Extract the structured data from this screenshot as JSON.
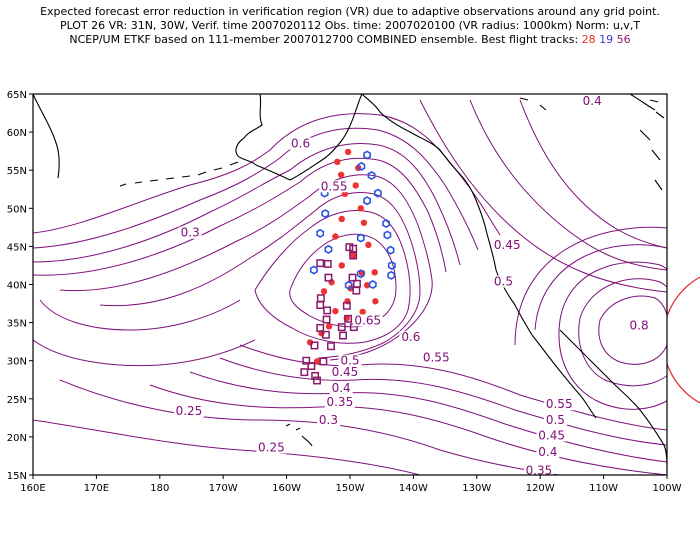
{
  "title": {
    "line1": "Expected forecast error reduction in verification region (VR) due to adaptive observations around any grid point.",
    "line2": "PLOT 26 VR: 31N, 30W, Verif. time 2007020112 Obs. time: 2007020100 (VR radius: 1000km) Norm: u,v,T",
    "line3": "NCEP/UM ETKF based on 111-member 2007012700 COMBINED ensemble.  Best flight tracks:",
    "track_red": "28",
    "track_blue": "19",
    "track_purple": "56"
  },
  "axes": {
    "x_ticks": [
      "160E",
      "170E",
      "180",
      "170W",
      "160W",
      "150W",
      "140W",
      "130W",
      "120W",
      "110W",
      "100W"
    ],
    "y_ticks": [
      "65N",
      "60N",
      "55N",
      "50N",
      "45N",
      "40N",
      "35N",
      "30N",
      "25N",
      "20N",
      "15N"
    ]
  },
  "colors": {
    "contour": "#80107a",
    "coast": "#000000",
    "red_track": "#ee3333",
    "blue_track": "#2a55e0",
    "purple_track": "#8a1a6a",
    "vr_circle": "#e03030"
  },
  "contour_labels": [
    {
      "text": "0.6",
      "lon": -157.8,
      "lat": 58.1
    },
    {
      "text": "0.55",
      "lon": -152.5,
      "lat": 52.5
    },
    {
      "text": "0.3",
      "lon": -175.2,
      "lat": 46.4
    },
    {
      "text": "0.4",
      "lon": -111.8,
      "lat": 63.7
    },
    {
      "text": "0.45",
      "lon": -125.2,
      "lat": 44.8
    },
    {
      "text": "0.5",
      "lon": -125.8,
      "lat": 40.0
    },
    {
      "text": "0.65",
      "lon": -147.2,
      "lat": 34.9
    },
    {
      "text": "0.6",
      "lon": -140.4,
      "lat": 32.7
    },
    {
      "text": "0.55",
      "lon": -136.4,
      "lat": 30.0
    },
    {
      "text": "0.5",
      "lon": -150.0,
      "lat": 29.6
    },
    {
      "text": "0.45",
      "lon": -150.8,
      "lat": 28.1
    },
    {
      "text": "0.4",
      "lon": -151.4,
      "lat": 26.0
    },
    {
      "text": "0.35",
      "lon": -151.6,
      "lat": 24.2
    },
    {
      "text": "0.3",
      "lon": -153.4,
      "lat": 21.8
    },
    {
      "text": "0.25",
      "lon": -175.4,
      "lat": 23.0
    },
    {
      "text": "0.25",
      "lon": -162.4,
      "lat": 18.2
    },
    {
      "text": "0.8",
      "lon": -104.4,
      "lat": 34.2
    },
    {
      "text": "0.55",
      "lon": -117.0,
      "lat": 23.9
    },
    {
      "text": "0.5",
      "lon": -117.6,
      "lat": 21.8
    },
    {
      "text": "0.45",
      "lon": -118.2,
      "lat": 19.8
    },
    {
      "text": "0.4",
      "lon": -118.8,
      "lat": 17.6
    },
    {
      "text": "0.35",
      "lon": -120.2,
      "lat": 15.2
    }
  ],
  "tracks": {
    "red": [
      [
        -150.3,
        57.4
      ],
      [
        -152.0,
        56.1
      ],
      [
        -148.7,
        55.3
      ],
      [
        -151.4,
        54.4
      ],
      [
        -149.1,
        53.0
      ],
      [
        -150.8,
        51.9
      ],
      [
        -148.3,
        50.0
      ],
      [
        -151.3,
        48.6
      ],
      [
        -147.8,
        48.1
      ],
      [
        -152.3,
        46.3
      ],
      [
        -147.1,
        45.2
      ],
      [
        -149.5,
        43.8
      ],
      [
        -151.3,
        42.5
      ],
      [
        -146.1,
        41.6
      ],
      [
        -148.1,
        41.5
      ],
      [
        -152.9,
        40.3
      ],
      [
        -149.9,
        39.5
      ],
      [
        -147.3,
        39.9
      ],
      [
        -154.1,
        39.1
      ],
      [
        -150.4,
        37.8
      ],
      [
        -146.0,
        37.8
      ],
      [
        -152.3,
        36.5
      ],
      [
        -148.0,
        36.4
      ],
      [
        -150.5,
        35.6
      ],
      [
        -153.3,
        34.5
      ],
      [
        -154.5,
        33.6
      ],
      [
        -156.3,
        32.4
      ],
      [
        -155.2,
        29.9
      ]
    ],
    "blue": [
      [
        -147.3,
        57.0
      ],
      [
        -148.2,
        55.5
      ],
      [
        -146.6,
        54.3
      ],
      [
        -145.6,
        52.0
      ],
      [
        -154.0,
        52.0
      ],
      [
        -147.3,
        51.0
      ],
      [
        -153.9,
        49.3
      ],
      [
        -144.3,
        48.0
      ],
      [
        -154.7,
        46.7
      ],
      [
        -144.1,
        46.5
      ],
      [
        -148.3,
        46.1
      ],
      [
        -153.4,
        44.6
      ],
      [
        -143.6,
        44.5
      ],
      [
        -143.4,
        42.5
      ],
      [
        -155.7,
        41.9
      ],
      [
        -148.3,
        41.4
      ],
      [
        -143.5,
        41.2
      ],
      [
        -150.2,
        39.9
      ],
      [
        -146.4,
        40.0
      ]
    ],
    "purple": [
      [
        -150.1,
        44.9
      ],
      [
        -149.5,
        44.7
      ],
      [
        -149.5,
        43.8
      ],
      [
        -154.7,
        42.8
      ],
      [
        -153.5,
        42.7
      ],
      [
        -153.4,
        40.9
      ],
      [
        -149.6,
        40.9
      ],
      [
        -148.9,
        40.1
      ],
      [
        -149.0,
        39.2
      ],
      [
        -154.6,
        38.2
      ],
      [
        -154.7,
        37.3
      ],
      [
        -150.5,
        37.2
      ],
      [
        -153.6,
        36.6
      ],
      [
        -153.7,
        35.4
      ],
      [
        -150.3,
        35.5
      ],
      [
        -154.7,
        34.3
      ],
      [
        -153.8,
        33.4
      ],
      [
        -151.1,
        33.3
      ],
      [
        -151.3,
        34.4
      ],
      [
        -149.4,
        34.4
      ],
      [
        -155.6,
        32.0
      ],
      [
        -153.0,
        31.9
      ],
      [
        -156.9,
        30.0
      ],
      [
        -154.2,
        29.9
      ],
      [
        -157.2,
        28.5
      ],
      [
        -155.5,
        28.0
      ],
      [
        -155.2,
        27.4
      ],
      [
        -156.1,
        29.3
      ]
    ]
  }
}
